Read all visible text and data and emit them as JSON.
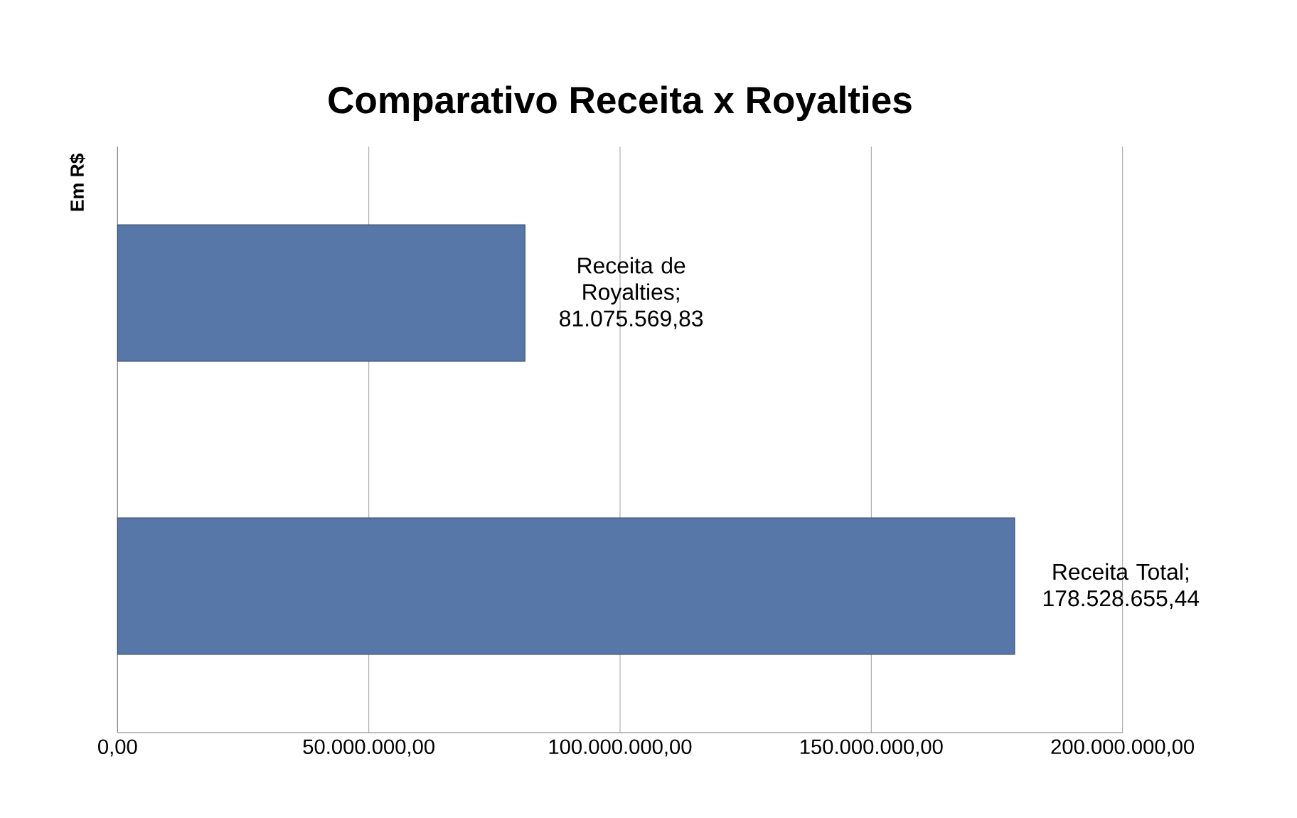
{
  "chart_data": {
    "type": "bar",
    "orientation": "horizontal",
    "title": "Comparativo Receita x Royalties",
    "ylabel": "Em R$",
    "categories": [
      null,
      null
    ],
    "values": [
      81075569.83,
      178528655.44
    ],
    "value_labels": [
      "Receita de Royalties; 81.075.569,83",
      "Receita Total; 178.528.655,44"
    ],
    "color": "#5677a8",
    "xlim": [
      0,
      200000000
    ],
    "xticks": [
      {
        "value": 0,
        "label": "0,00"
      },
      {
        "value": 50000000,
        "label": "50.000.000,00"
      },
      {
        "value": 100000000,
        "label": "100.000.000,00"
      },
      {
        "value": 150000000,
        "label": "150.000.000,00"
      },
      {
        "value": 200000000,
        "label": "200.000.000,00"
      }
    ],
    "grid": "x"
  }
}
